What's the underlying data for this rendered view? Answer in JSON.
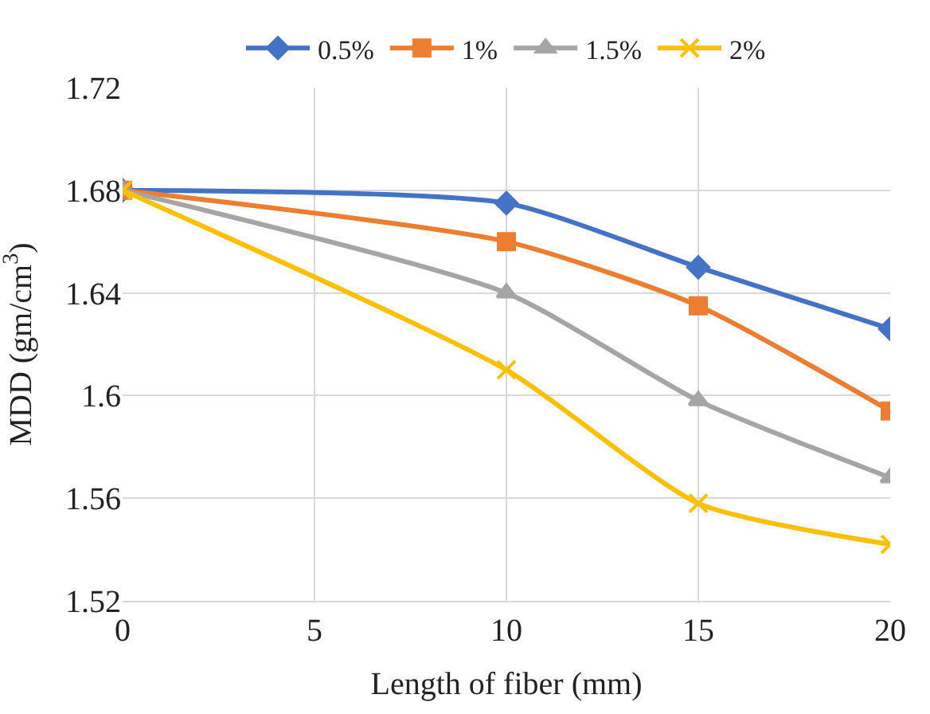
{
  "chart_data": {
    "type": "line",
    "xlabel": "Length of fiber (mm)",
    "ylabel": "MDD (gm/cm$^{3}$)",
    "x": [
      0,
      10,
      15,
      20
    ],
    "series": [
      {
        "name": "0.5%",
        "color": "#4472c4",
        "marker": "diamond",
        "values": [
          1.68,
          1.675,
          1.65,
          1.626
        ]
      },
      {
        "name": "1%",
        "color": "#ed7d31",
        "marker": "square",
        "values": [
          1.68,
          1.66,
          1.635,
          1.594
        ]
      },
      {
        "name": "1.5%",
        "color": "#a5a5a5",
        "marker": "triangle",
        "values": [
          1.68,
          1.64,
          1.598,
          1.568
        ]
      },
      {
        "name": "2%",
        "color": "#ffc000",
        "marker": "cross",
        "values": [
          1.68,
          1.61,
          1.558,
          1.542
        ]
      }
    ],
    "xlim": [
      0,
      20
    ],
    "xticks": [
      0,
      5,
      10,
      15,
      20
    ],
    "ylim": [
      1.52,
      1.72
    ],
    "yticks": [
      1.52,
      1.56,
      1.6,
      1.64,
      1.68,
      1.72
    ],
    "grid": true,
    "legend": "top"
  }
}
